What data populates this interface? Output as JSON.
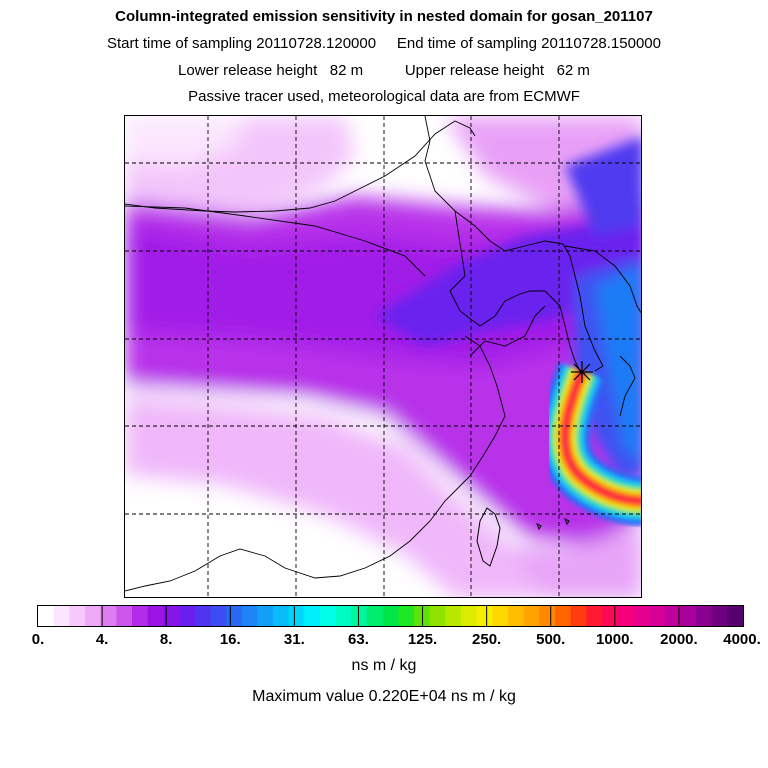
{
  "header": {
    "title": "Column-integrated emission sensitivity in nested domain for gosan_201107",
    "sampling_line": "Start time of sampling 20110728.120000     End time of sampling 20110728.150000",
    "release_line": "Lower release height   82 m          Upper release height   62 m",
    "tracer_line": "Passive tracer used, meteorological data are from ECMWF"
  },
  "map": {
    "name": "emission-sensitivity-map",
    "release_marker": "star-marker",
    "grid_lines": "dashed"
  },
  "colorbar": {
    "ticks": [
      "0.",
      "4.",
      "8.",
      "16.",
      "31.",
      "63.",
      "125.",
      "250.",
      "500.",
      "1000.",
      "2000.",
      "4000."
    ],
    "colors": [
      "#ffffff",
      "#fce6ff",
      "#f6c8fb",
      "#eeaaf7",
      "#dd7df0",
      "#cc55ee",
      "#b32de8",
      "#9a14e6",
      "#8515e8",
      "#6a1ff0",
      "#5233f0",
      "#3c4cf2",
      "#2a68f4",
      "#1c84f6",
      "#10a0f8",
      "#08bcfa",
      "#00d6fb",
      "#00f0fb",
      "#00ffe6",
      "#00fbc3",
      "#00f59a",
      "#00ee6e",
      "#00e648",
      "#20e623",
      "#5ce40a",
      "#8ee400",
      "#b8e800",
      "#dcec00",
      "#f6ee00",
      "#ffd800",
      "#ffbe00",
      "#ffa300",
      "#ff8800",
      "#ff6400",
      "#ff3c10",
      "#ff1a30",
      "#ff0855",
      "#f5007a",
      "#e6008c",
      "#d60096",
      "#c0009c",
      "#a8009a",
      "#8a0090",
      "#6e0080",
      "#560070"
    ],
    "unit": "ns m / kg",
    "max_label": "Maximum value  0.220E+04 ns m / kg"
  }
}
